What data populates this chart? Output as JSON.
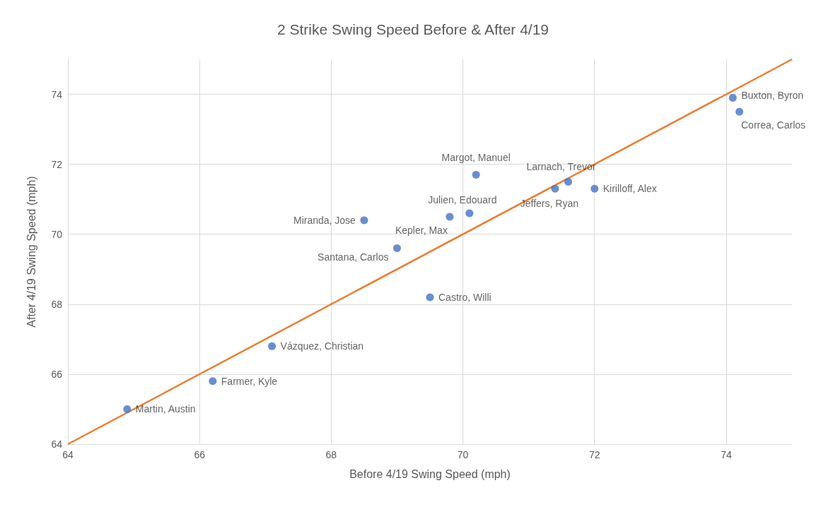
{
  "chart_data": {
    "type": "scatter",
    "title": "2 Strike Swing Speed Before & After 4/19",
    "xlabel": "Before 4/19 Swing Speed (mph)",
    "ylabel": "After 4/19 Swing Speed (mph)",
    "xlim": [
      64,
      75
    ],
    "xticks": [
      64,
      66,
      68,
      70,
      72,
      74
    ],
    "ylim": [
      64,
      75
    ],
    "yticks": [
      64,
      66,
      68,
      70,
      72,
      74
    ],
    "grid": true,
    "marker": "circle",
    "series": [
      {
        "type": "scatter",
        "color": "#4472c4",
        "x": [
          74.1,
          74.2,
          70.2,
          71.6,
          71.4,
          72.0,
          70.1,
          69.8,
          68.5,
          69.0,
          69.5,
          67.1,
          66.2,
          64.9
        ],
        "values": [
          73.9,
          73.5,
          71.7,
          71.5,
          71.3,
          71.3,
          70.6,
          70.5,
          70.4,
          69.6,
          68.2,
          66.8,
          65.8,
          65.0
        ]
      },
      {
        "type": "line",
        "color": "#ed7d31",
        "marker": "none",
        "x": [
          64,
          75
        ],
        "values": [
          64,
          75
        ]
      }
    ],
    "annotations": [
      {
        "text": "Buxton, Byron",
        "x": 74.1,
        "y": 73.9
      },
      {
        "text": "Correa, Carlos",
        "x": 74.2,
        "y": 73.5
      },
      {
        "text": "Margot, Manuel",
        "x": 70.2,
        "y": 71.7
      },
      {
        "text": "Larnach, Trevor",
        "x": 71.6,
        "y": 71.5
      },
      {
        "text": "Jeffers, Ryan",
        "x": 71.4,
        "y": 71.3
      },
      {
        "text": "Kirilloff, Alex",
        "x": 72.0,
        "y": 71.3
      },
      {
        "text": "Julien, Edouard",
        "x": 70.1,
        "y": 70.6
      },
      {
        "text": "Kepler, Max",
        "x": 69.8,
        "y": 70.5
      },
      {
        "text": "Miranda, Jose",
        "x": 68.5,
        "y": 70.4
      },
      {
        "text": "Santana, Carlos",
        "x": 69.0,
        "y": 69.6
      },
      {
        "text": "Castro, Willi",
        "x": 69.5,
        "y": 68.2
      },
      {
        "text": "Vázquez, Christian",
        "x": 67.1,
        "y": 66.8
      },
      {
        "text": "Farmer, Kyle",
        "x": 66.2,
        "y": 65.8
      },
      {
        "text": "Martin, Austin",
        "x": 64.9,
        "y": 65.0
      }
    ]
  }
}
